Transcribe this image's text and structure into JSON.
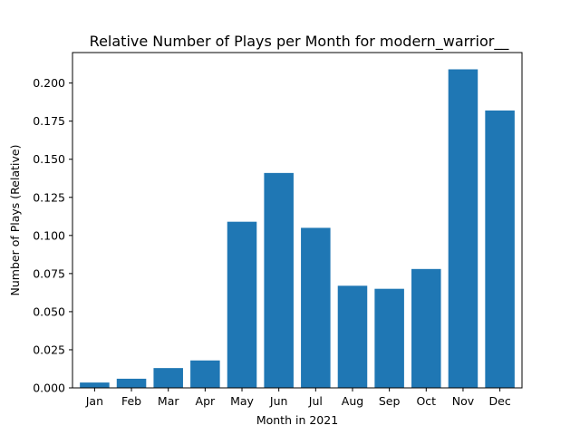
{
  "chart_data": {
    "type": "bar",
    "title": "Relative Number of Plays per Month for modern_warrior__",
    "xlabel": "Month in 2021",
    "ylabel": "Number of Plays (Relative)",
    "categories": [
      "Jan",
      "Feb",
      "Mar",
      "Apr",
      "May",
      "Jun",
      "Jul",
      "Aug",
      "Sep",
      "Oct",
      "Nov",
      "Dec"
    ],
    "values": [
      0.0035,
      0.006,
      0.013,
      0.018,
      0.109,
      0.141,
      0.105,
      0.067,
      0.065,
      0.078,
      0.209,
      0.182
    ],
    "ylim": [
      0,
      0.22
    ],
    "yticks": [
      "0.000",
      "0.025",
      "0.050",
      "0.075",
      "0.100",
      "0.125",
      "0.150",
      "0.175",
      "0.200"
    ],
    "bar_color": "#1f77b4",
    "grid": false,
    "legend": "none"
  }
}
